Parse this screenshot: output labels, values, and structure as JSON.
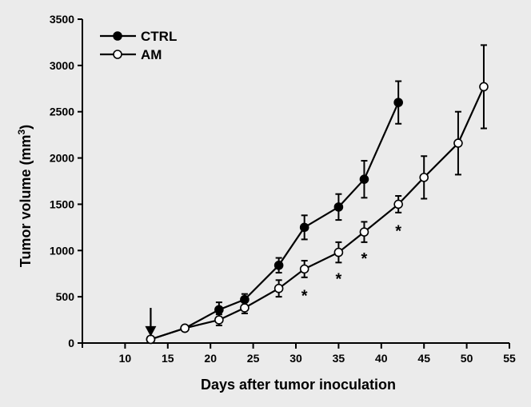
{
  "chart_data": {
    "type": "line",
    "title": "",
    "xlabel": "Days after tumor inoculation",
    "ylabel_main": "Tumor volume (mm",
    "ylabel_sup": "3",
    "ylabel_close": ")",
    "xlim": [
      5,
      55
    ],
    "ylim": [
      0,
      3500
    ],
    "xticks": [
      10,
      15,
      20,
      25,
      30,
      35,
      40,
      45,
      50,
      55
    ],
    "yticks": [
      0,
      500,
      1000,
      1500,
      2000,
      2500,
      3000,
      3500
    ],
    "grid": false,
    "legend_position": "top-left",
    "series": [
      {
        "name": "CTRL",
        "marker": "filled-circle",
        "color": "#000000",
        "x": [
          13,
          17,
          21,
          24,
          28,
          31,
          35,
          38,
          42
        ],
        "y": [
          40,
          160,
          360,
          470,
          840,
          1250,
          1470,
          1770,
          2600
        ],
        "err": [
          30,
          25,
          80,
          60,
          80,
          130,
          140,
          200,
          230
        ]
      },
      {
        "name": "AM",
        "marker": "open-circle",
        "color": "#000000",
        "x": [
          13,
          17,
          21,
          24,
          28,
          31,
          35,
          38,
          42,
          45,
          49,
          52
        ],
        "y": [
          40,
          160,
          250,
          380,
          590,
          800,
          980,
          1200,
          1500,
          1790,
          2160,
          2770
        ],
        "err": [
          30,
          25,
          60,
          60,
          90,
          90,
          110,
          110,
          90,
          230,
          340,
          450
        ]
      }
    ],
    "annotations": [
      {
        "text": "*",
        "x": 31,
        "y": 800
      },
      {
        "text": "*",
        "x": 35,
        "y": 980
      },
      {
        "text": "*",
        "x": 38,
        "y": 1200
      },
      {
        "text": "*",
        "x": 42,
        "y": 1500
      }
    ],
    "arrow": {
      "x": 13,
      "y_from": 380,
      "y_to": 70
    }
  }
}
